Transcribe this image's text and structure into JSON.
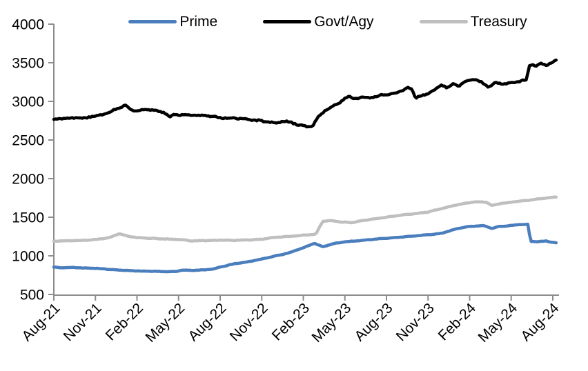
{
  "chart_data": {
    "type": "line",
    "title": "",
    "legend_position": "top",
    "grid": false,
    "x_axis": {
      "unit": "month",
      "tick_interval_months": 3,
      "range_months": [
        0,
        36.3
      ],
      "tick_labels": [
        "Aug-21",
        "Nov-21",
        "Feb-22",
        "May-22",
        "Aug-22",
        "Nov-22",
        "Feb-23",
        "May-23",
        "Aug-23",
        "Nov-23",
        "Feb-24",
        "May-24",
        "Aug-24"
      ]
    },
    "y_axis": {
      "min": 500,
      "max": 4000,
      "tick_interval": 500,
      "tick_labels": [
        "500",
        "1000",
        "1500",
        "2000",
        "2500",
        "3000",
        "3500",
        "4000"
      ]
    },
    "series": [
      {
        "name": "Prime",
        "color": "#4a7ebd",
        "points_month_value": [
          [
            0,
            852
          ],
          [
            0.6,
            846
          ],
          [
            1,
            848
          ],
          [
            1.5,
            850
          ],
          [
            2,
            843
          ],
          [
            3,
            838
          ],
          [
            4,
            826
          ],
          [
            5,
            812
          ],
          [
            6,
            804
          ],
          [
            7,
            801
          ],
          [
            8,
            797
          ],
          [
            8.8,
            795
          ],
          [
            9.3,
            816
          ],
          [
            10,
            812
          ],
          [
            11,
            820
          ],
          [
            11.6,
            833
          ],
          [
            12,
            852
          ],
          [
            13,
            898
          ],
          [
            14,
            922
          ],
          [
            15,
            958
          ],
          [
            16,
            1000
          ],
          [
            17,
            1040
          ],
          [
            18,
            1105
          ],
          [
            18.8,
            1163
          ],
          [
            19.4,
            1118
          ],
          [
            20.2,
            1158
          ],
          [
            21,
            1180
          ],
          [
            22,
            1198
          ],
          [
            23,
            1213
          ],
          [
            24,
            1228
          ],
          [
            25,
            1243
          ],
          [
            26,
            1258
          ],
          [
            27,
            1272
          ],
          [
            28,
            1293
          ],
          [
            28.5,
            1320
          ],
          [
            29,
            1348
          ],
          [
            30,
            1380
          ],
          [
            31,
            1393
          ],
          [
            31.6,
            1356
          ],
          [
            32.1,
            1378
          ],
          [
            33,
            1392
          ],
          [
            33.6,
            1405
          ],
          [
            34.2,
            1408
          ],
          [
            34.4,
            1190
          ],
          [
            35,
            1183
          ],
          [
            35.5,
            1192
          ],
          [
            36,
            1173
          ],
          [
            36.3,
            1165
          ]
        ]
      },
      {
        "name": "Govt/Agy",
        "color": "#000000",
        "points_month_value": [
          [
            0,
            2770
          ],
          [
            0.5,
            2782
          ],
          [
            1,
            2778
          ],
          [
            1.5,
            2792
          ],
          [
            2,
            2780
          ],
          [
            2.5,
            2796
          ],
          [
            3,
            2812
          ],
          [
            3.5,
            2830
          ],
          [
            4,
            2858
          ],
          [
            4.5,
            2900
          ],
          [
            5,
            2935
          ],
          [
            5.2,
            2942
          ],
          [
            5.6,
            2890
          ],
          [
            6,
            2878
          ],
          [
            6.5,
            2898
          ],
          [
            7,
            2888
          ],
          [
            7.5,
            2872
          ],
          [
            8,
            2850
          ],
          [
            8.4,
            2792
          ],
          [
            8.7,
            2836
          ],
          [
            9,
            2830
          ],
          [
            9.5,
            2822
          ],
          [
            10,
            2820
          ],
          [
            10.5,
            2812
          ],
          [
            11,
            2812
          ],
          [
            11.5,
            2800
          ],
          [
            12,
            2792
          ],
          [
            12.5,
            2788
          ],
          [
            13,
            2780
          ],
          [
            14,
            2762
          ],
          [
            15,
            2748
          ],
          [
            15.5,
            2738
          ],
          [
            16,
            2722
          ],
          [
            16.5,
            2736
          ],
          [
            17,
            2730
          ],
          [
            17.5,
            2706
          ],
          [
            18,
            2692
          ],
          [
            18.4,
            2668
          ],
          [
            18.7,
            2692
          ],
          [
            19,
            2780
          ],
          [
            19.5,
            2868
          ],
          [
            20,
            2922
          ],
          [
            20.5,
            2968
          ],
          [
            21,
            3040
          ],
          [
            21.3,
            3062
          ],
          [
            21.7,
            3040
          ],
          [
            22,
            3035
          ],
          [
            22.5,
            3055
          ],
          [
            23,
            3045
          ],
          [
            23.7,
            3088
          ],
          [
            24,
            3092
          ],
          [
            24.5,
            3108
          ],
          [
            25,
            3130
          ],
          [
            25.5,
            3168
          ],
          [
            25.8,
            3160
          ],
          [
            26.1,
            3048
          ],
          [
            26.5,
            3068
          ],
          [
            27,
            3105
          ],
          [
            27.5,
            3158
          ],
          [
            28,
            3215
          ],
          [
            28.4,
            3172
          ],
          [
            28.8,
            3222
          ],
          [
            29.2,
            3200
          ],
          [
            29.6,
            3248
          ],
          [
            30,
            3272
          ],
          [
            30.3,
            3295
          ],
          [
            30.8,
            3252
          ],
          [
            31.4,
            3185
          ],
          [
            31.8,
            3238
          ],
          [
            32.3,
            3228
          ],
          [
            33,
            3242
          ],
          [
            33.6,
            3258
          ],
          [
            34.1,
            3282
          ],
          [
            34.35,
            3478
          ],
          [
            34.8,
            3458
          ],
          [
            35.2,
            3488
          ],
          [
            35.6,
            3472
          ],
          [
            36,
            3512
          ],
          [
            36.3,
            3532
          ]
        ]
      },
      {
        "name": "Treasury",
        "color": "#bfbfbf",
        "points_month_value": [
          [
            0,
            1190
          ],
          [
            1,
            1196
          ],
          [
            2,
            1200
          ],
          [
            3,
            1212
          ],
          [
            4,
            1232
          ],
          [
            4.7,
            1288
          ],
          [
            5.3,
            1258
          ],
          [
            6,
            1235
          ],
          [
            7,
            1226
          ],
          [
            8,
            1220
          ],
          [
            9,
            1212
          ],
          [
            10,
            1192
          ],
          [
            11,
            1200
          ],
          [
            12,
            1204
          ],
          [
            13,
            1200
          ],
          [
            14,
            1206
          ],
          [
            15,
            1216
          ],
          [
            16,
            1240
          ],
          [
            17,
            1252
          ],
          [
            18,
            1268
          ],
          [
            18.9,
            1278
          ],
          [
            19.4,
            1448
          ],
          [
            20,
            1458
          ],
          [
            20.7,
            1440
          ],
          [
            21.5,
            1428
          ],
          [
            22,
            1446
          ],
          [
            23,
            1478
          ],
          [
            24,
            1500
          ],
          [
            25,
            1525
          ],
          [
            26,
            1545
          ],
          [
            27,
            1568
          ],
          [
            28,
            1612
          ],
          [
            29,
            1658
          ],
          [
            30,
            1690
          ],
          [
            30.6,
            1700
          ],
          [
            31.2,
            1692
          ],
          [
            31.6,
            1652
          ],
          [
            32.2,
            1678
          ],
          [
            33,
            1694
          ],
          [
            34,
            1714
          ],
          [
            35,
            1738
          ],
          [
            36,
            1758
          ],
          [
            36.3,
            1762
          ]
        ]
      }
    ]
  },
  "colors": {
    "background": "#ffffff",
    "axis": "#8c8c8c",
    "label_text": "#000000"
  }
}
